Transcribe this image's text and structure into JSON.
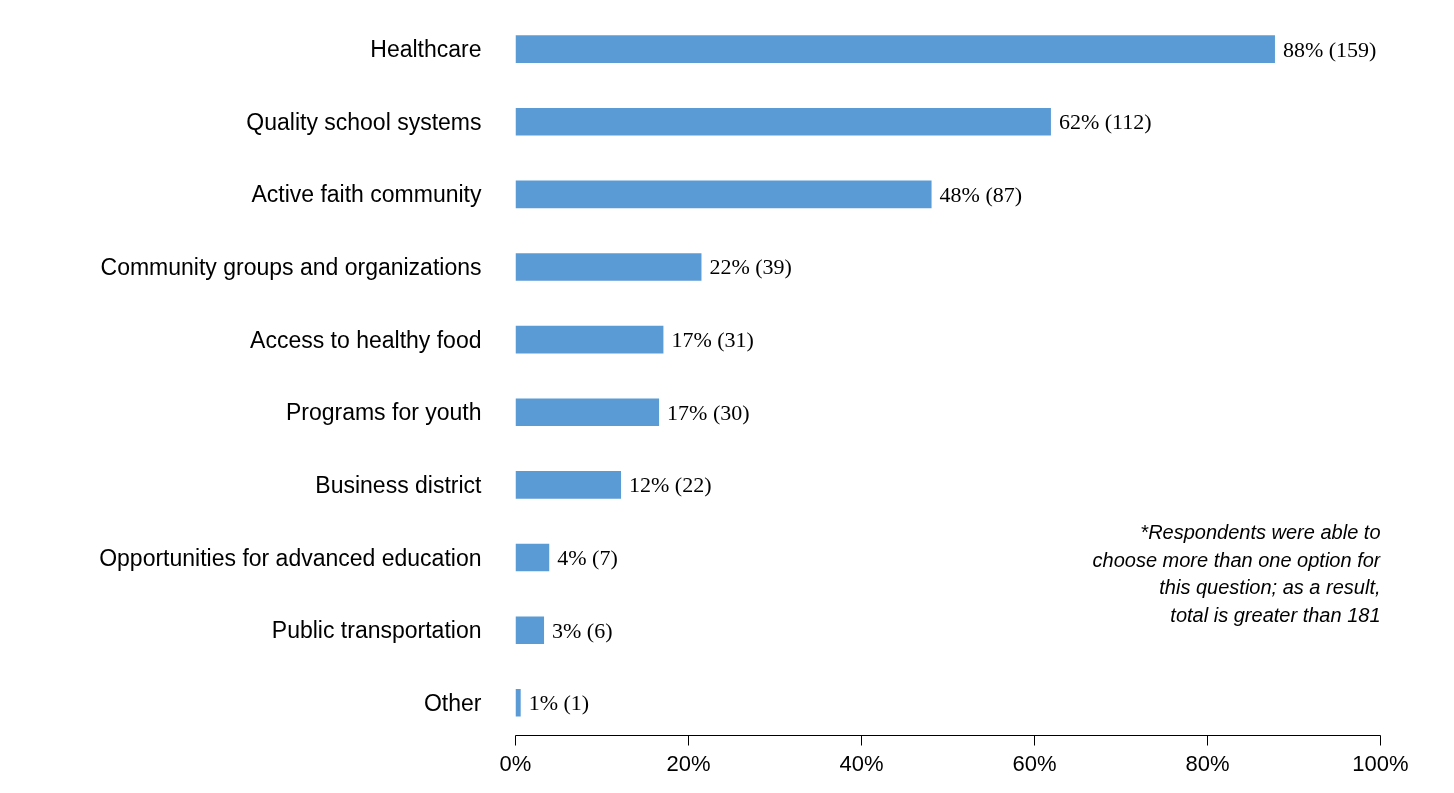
{
  "chart_data": {
    "type": "bar",
    "orientation": "horizontal",
    "categories": [
      "Healthcare",
      "Quality school systems",
      "Active faith community",
      "Community groups and organizations",
      "Access to healthy food",
      "Programs for youth",
      "Business district",
      "Opportunities for advanced education",
      "Public transportation",
      "Other"
    ],
    "values": [
      87.8,
      61.9,
      48.1,
      21.5,
      17.1,
      16.6,
      12.2,
      3.9,
      3.3,
      0.6
    ],
    "value_labels": [
      "88% (159)",
      "62% (112)",
      "48% (87)",
      "22% (39)",
      "17% (31)",
      "17% (30)",
      "12% (22)",
      "4% (7)",
      "3% (6)",
      "1% (1)"
    ],
    "color": "#5b9bd5",
    "xlim": [
      0,
      100
    ],
    "xticks": [
      {
        "value": 0,
        "label": "0%"
      },
      {
        "value": 20,
        "label": "20%"
      },
      {
        "value": 40,
        "label": "40%"
      },
      {
        "value": 60,
        "label": "60%"
      },
      {
        "value": 80,
        "label": "80%"
      },
      {
        "value": 100,
        "label": "100%"
      }
    ],
    "grid": false,
    "annotations": [
      "*Respondents were able to choose more than one option for this question; as a result, total is greater than 181"
    ]
  }
}
